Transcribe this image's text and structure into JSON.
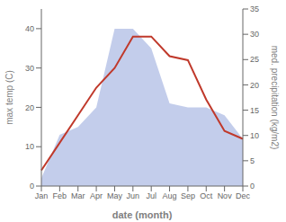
{
  "chart_data": {
    "type": "line",
    "categories": [
      "Jan",
      "Feb",
      "Mar",
      "Apr",
      "May",
      "Jun",
      "Jul",
      "Aug",
      "Sep",
      "Oct",
      "Nov",
      "Dec"
    ],
    "series": [
      {
        "type": "area",
        "color": "#b8c4e8",
        "values": [
          2,
          13,
          15,
          20,
          40,
          40,
          35,
          21,
          20,
          20,
          18,
          12
        ]
      },
      {
        "type": "line",
        "color": "#c0392b",
        "values": [
          4,
          11,
          18,
          25,
          30,
          38,
          38,
          33,
          32,
          22,
          14,
          12
        ]
      }
    ],
    "xlabel": "date (month)",
    "ylabel": "max temp (C)",
    "y2label": "med. precipitation (kg/m2)",
    "ylim": [
      0,
      45
    ],
    "yticks": [
      0,
      10,
      20,
      30,
      40
    ],
    "y2lim": [
      0,
      35
    ],
    "y2ticks": [
      0,
      5,
      10,
      15,
      20,
      25,
      30,
      35
    ],
    "grid": false
  }
}
